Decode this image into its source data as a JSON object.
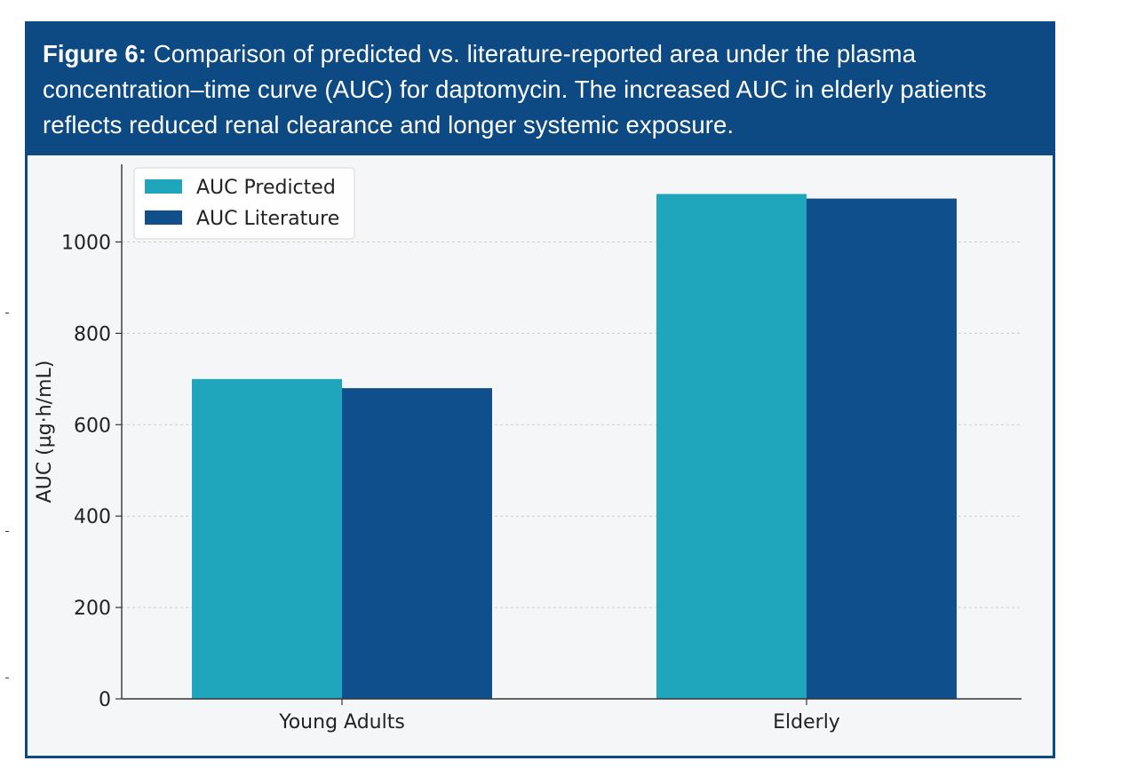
{
  "figure": {
    "label": "Figure 6:",
    "text": " Comparison of predicted vs. literature-reported area under the plasma concentration–time curve (AUC) for daptomycin. The increased AUC in elderly patients reflects reduced renal clearance and longer systemic exposure."
  },
  "colors": {
    "header_bg": "#0d4a84",
    "predicted": "#1fa6bd",
    "literature": "#0f4f8c"
  },
  "chart_data": {
    "type": "bar",
    "categories": [
      "Young Adults",
      "Elderly"
    ],
    "series": [
      {
        "name": "AUC Predicted",
        "values": [
          700,
          1105
        ]
      },
      {
        "name": "AUC Literature",
        "values": [
          680,
          1095
        ]
      }
    ],
    "title": "",
    "xlabel": "",
    "ylabel": "AUC (µg·h/mL)",
    "ylim": [
      0,
      1170
    ],
    "yticks": [
      0,
      200,
      400,
      600,
      800,
      1000
    ],
    "grid": true,
    "legend": "top-left"
  }
}
